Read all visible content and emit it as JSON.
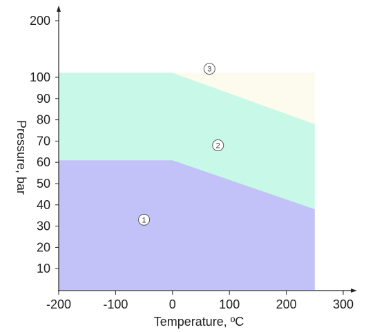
{
  "chart_data": {
    "type": "area",
    "title": "",
    "xlabel": "Temperature, ºC",
    "ylabel": "Pressure, bar",
    "x_ticks": [
      -200,
      -100,
      0,
      100,
      200,
      300
    ],
    "y_ticks": [
      10,
      20,
      30,
      40,
      50,
      60,
      70,
      80,
      90,
      100,
      200
    ],
    "x_range": [
      -200,
      300
    ],
    "grid": false,
    "regions": [
      {
        "name": "1",
        "color": "#c2c2f8",
        "points": [
          [
            -200,
            0
          ],
          [
            -200,
            61
          ],
          [
            0,
            61
          ],
          [
            250,
            38
          ],
          [
            250,
            0
          ]
        ]
      },
      {
        "name": "2",
        "color": "#c8f9e8",
        "points": [
          [
            -200,
            61
          ],
          [
            -200,
            108
          ],
          [
            0,
            108
          ],
          [
            250,
            78
          ],
          [
            250,
            38
          ],
          [
            0,
            61
          ]
        ]
      },
      {
        "name": "3",
        "color": "#fdfbee",
        "points": [
          [
            0,
            108
          ],
          [
            250,
            108
          ],
          [
            250,
            78
          ]
        ]
      }
    ],
    "region_labels": [
      {
        "text": "1",
        "x": -50,
        "y": 33
      },
      {
        "text": "2",
        "x": 80,
        "y": 68
      },
      {
        "text": "3",
        "x": 65,
        "y": 115
      }
    ]
  }
}
